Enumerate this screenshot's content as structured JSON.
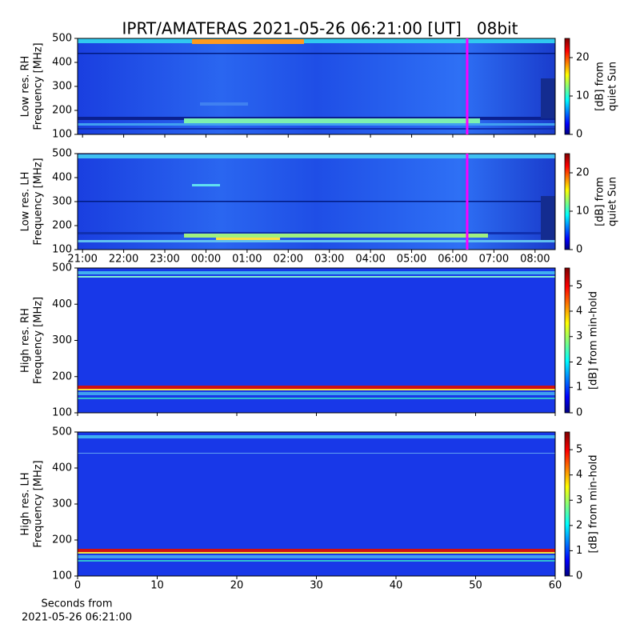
{
  "title": "IPRT/AMATERAS 2021-05-26 06:21:00 [UT]   08bit",
  "chart_data": [
    {
      "type": "heatmap",
      "ylabel": [
        "Low res. RH",
        "Frequency [MHz]"
      ],
      "ylim": [
        100,
        500
      ],
      "yticks": [
        100,
        200,
        300,
        400,
        500
      ],
      "xlim": [
        20.88,
        32.49
      ],
      "cursor_x": 30.35,
      "cursor_color": "#ff00ff",
      "colorbar_label": [
        "[dB] from",
        "quiet Sun"
      ],
      "clim": [
        0,
        25
      ],
      "cticks": [
        0,
        10,
        20
      ]
    },
    {
      "type": "heatmap",
      "ylabel": [
        "Low res. LH",
        "Frequency [MHz]"
      ],
      "ylim": [
        100,
        500
      ],
      "yticks": [
        100,
        200,
        300,
        400,
        500
      ],
      "xlim": [
        20.88,
        32.49
      ],
      "cursor_x": 30.35,
      "cursor_color": "#ff00ff",
      "xticks": [
        {
          "value": 21,
          "label": "21:00"
        },
        {
          "value": 22,
          "label": "22:00"
        },
        {
          "value": 23,
          "label": "23:00"
        },
        {
          "value": 24,
          "label": "00:00"
        },
        {
          "value": 25,
          "label": "01:00"
        },
        {
          "value": 26,
          "label": "02:00"
        },
        {
          "value": 27,
          "label": "03:00"
        },
        {
          "value": 28,
          "label": "04:00"
        },
        {
          "value": 29,
          "label": "05:00"
        },
        {
          "value": 30,
          "label": "06:00"
        },
        {
          "value": 31,
          "label": "07:00"
        },
        {
          "value": 32,
          "label": "08:00"
        }
      ],
      "colorbar_label": [
        "[dB] from",
        "quiet Sun"
      ],
      "clim": [
        0,
        25
      ],
      "cticks": [
        0,
        10,
        20
      ]
    },
    {
      "type": "heatmap",
      "ylabel": [
        "High res. RH",
        "Frequency [MHz]"
      ],
      "ylim": [
        100,
        500
      ],
      "yticks": [
        100,
        200,
        300,
        400,
        500
      ],
      "xlim": [
        0,
        60
      ],
      "colorbar_label": [
        "[dB] from min-hold"
      ],
      "clim": [
        0,
        5.7
      ],
      "cticks": [
        0,
        1,
        2,
        3,
        4,
        5
      ]
    },
    {
      "type": "heatmap",
      "ylabel": [
        "High res. LH",
        "Frequency [MHz]"
      ],
      "ylim": [
        100,
        500
      ],
      "yticks": [
        100,
        200,
        300,
        400,
        500
      ],
      "xlim": [
        0,
        60
      ],
      "xticks": [
        0,
        10,
        20,
        30,
        40,
        50,
        60
      ],
      "xlabel": [
        "Seconds from",
        "2021-05-26 06:21:00"
      ],
      "colorbar_label": [
        "[dB] from min-hold"
      ],
      "clim": [
        0,
        5.7
      ],
      "cticks": [
        0,
        1,
        2,
        3,
        4,
        5
      ]
    }
  ]
}
